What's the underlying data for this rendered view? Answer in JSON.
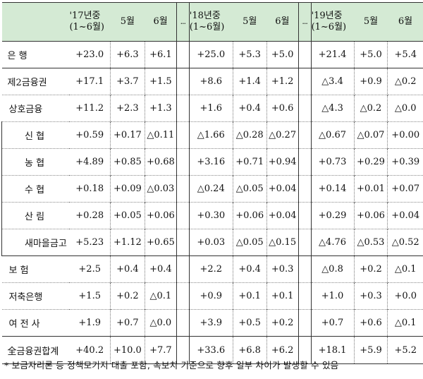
{
  "header": {
    "year17": "'17년중",
    "year18": "'18년중",
    "year19": "'19년중",
    "h1to6": "(1~6월)",
    "may": "5월",
    "jun": "6월",
    "dots": "..."
  },
  "rows": [
    {
      "label": "은        행",
      "v": [
        "+23.0",
        "+6.3",
        "+6.1",
        "+25.0",
        "+5.3",
        "+5.0",
        "+21.4",
        "+5.0",
        "+5.4"
      ]
    },
    {
      "label": "제2금융권",
      "v": [
        "+17.1",
        "+3.7",
        "+1.5",
        "+8.6",
        "+1.4",
        "+1.2",
        "△3.4",
        "+0.9",
        "△0.2"
      ]
    },
    {
      "label": "상호금융",
      "v": [
        "+11.2",
        "+2.3",
        "+1.3",
        "+1.6",
        "+0.4",
        "+0.6",
        "△4.3",
        "△0.2",
        "△0.0"
      ]
    },
    {
      "label": "신    협",
      "v": [
        "+0.59",
        "+0.17",
        "△0.11",
        "△1.66",
        "△0.28",
        "△0.27",
        "△0.67",
        "△0.07",
        "+0.00"
      ]
    },
    {
      "label": "농    협",
      "v": [
        "+4.89",
        "+0.85",
        "+0.68",
        "+3.16",
        "+0.71",
        "+0.94",
        "+0.73",
        "+0.29",
        "+0.39"
      ]
    },
    {
      "label": "수    협",
      "v": [
        "+0.18",
        "+0.09",
        "△0.03",
        "△0.24",
        "△0.05",
        "+0.04",
        "+0.14",
        "+0.01",
        "+0.07"
      ]
    },
    {
      "label": "산    림",
      "v": [
        "+0.28",
        "+0.05",
        "+0.06",
        "+0.30",
        "+0.06",
        "+0.04",
        "+0.29",
        "+0.06",
        "+0.04"
      ]
    },
    {
      "label": "새마을금고",
      "v": [
        "+5.23",
        "+1.12",
        "+0.65",
        "+0.03",
        "△0.05",
        "△0.15",
        "△4.76",
        "△0.53",
        "△0.52"
      ]
    },
    {
      "label": "보    험",
      "v": [
        "+2.5",
        "+0.4",
        "+0.4",
        "+2.2",
        "+0.4",
        "+0.3",
        "△0.8",
        "+0.2",
        "△0.1"
      ]
    },
    {
      "label": "저축은행",
      "v": [
        "+1.5",
        "+0.2",
        "△0.1",
        "+0.9",
        "+0.1",
        "+0.1",
        "+1.0",
        "+0.3",
        "+0.0"
      ]
    },
    {
      "label": "여 전 사",
      "v": [
        "+1.9",
        "+0.7",
        "△0.0",
        "+3.9",
        "+0.5",
        "+0.2",
        "+0.7",
        "+0.6",
        "△0.1"
      ]
    },
    {
      "label": "全금융권합계",
      "v": [
        "+40.2",
        "+10.0",
        "+7.7",
        "+33.6",
        "+6.8",
        "+6.2",
        "+18.1",
        "+5.9",
        "+5.2"
      ]
    }
  ],
  "note": "* 보금자리론 등 정책모기지 대출 포함, 속보치 기준으로 향후 일부 차이가 발생할 수 있음"
}
